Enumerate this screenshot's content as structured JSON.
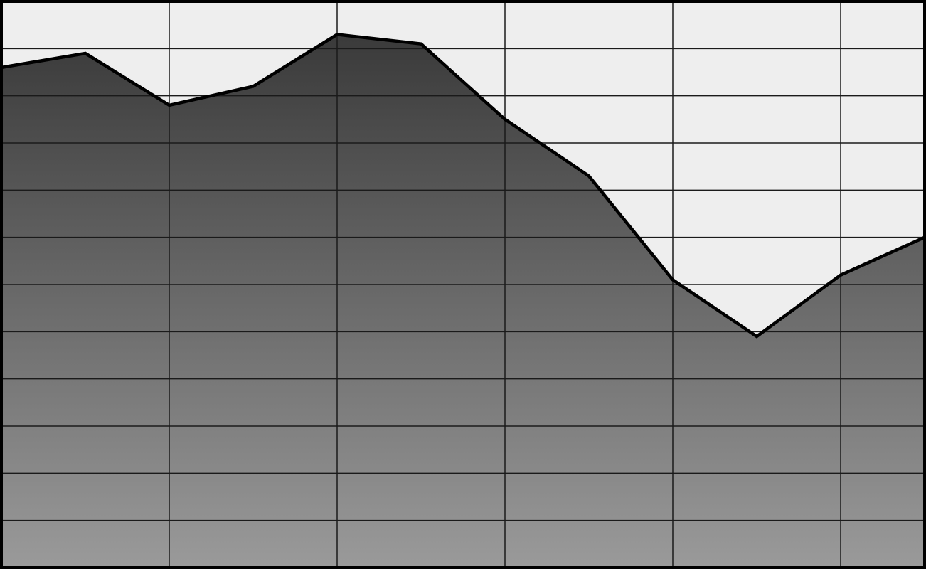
{
  "chart_data": {
    "type": "area",
    "title": "",
    "xlabel": "",
    "ylabel": "",
    "x": [
      0,
      1,
      2,
      3,
      4,
      5,
      6,
      7,
      8,
      9,
      10,
      11
    ],
    "xlim": [
      0,
      11
    ],
    "ylim": [
      0,
      12
    ],
    "x_grid_ticks": [
      2,
      4,
      6,
      8,
      10
    ],
    "y_grid_ticks": [
      1,
      2,
      3,
      4,
      5,
      6,
      7,
      8,
      9,
      10,
      11
    ],
    "grid": true,
    "legend": "none",
    "series": [
      {
        "values": [
          10.6,
          10.9,
          9.8,
          10.2,
          11.3,
          11.1,
          9.5,
          8.3,
          6.1,
          4.9,
          6.2,
          7.0
        ]
      }
    ],
    "colors": {
      "plot_background": "#eeeeee",
      "fill_top": "#3a3a3a",
      "fill_bottom": "#9a9a9a",
      "line": "#000000",
      "grid": "#1a1a1a"
    }
  }
}
